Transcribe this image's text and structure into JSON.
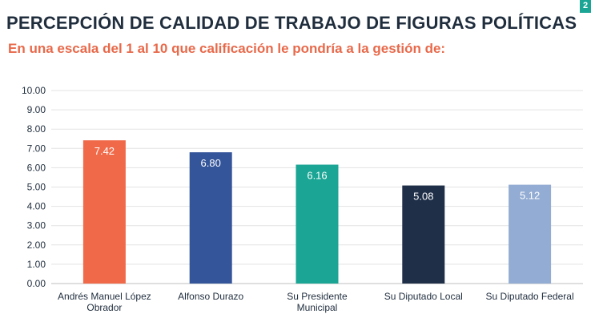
{
  "header": {
    "title": "PERCEPCIÓN DE CALIDAD DE TRABAJO DE FIGURAS POLÍTICAS",
    "subtitle": "En una escala del 1 al 10 que calificación le pondría a la gestión de:",
    "page_badge": "2"
  },
  "chart_data": {
    "type": "bar",
    "title": "PERCEPCIÓN DE CALIDAD DE TRABAJO DE FIGURAS POLÍTICAS",
    "subtitle": "En una escala del 1 al 10 que calificación le pondría a la gestión de:",
    "categories": [
      [
        "Andrés Manuel López",
        "Obrador"
      ],
      [
        "Alfonso Durazo"
      ],
      [
        "Su Presidente",
        "Municipal"
      ],
      [
        "Su Diputado Local"
      ],
      [
        "Su Diputado Federal"
      ]
    ],
    "values": [
      7.42,
      6.8,
      6.16,
      5.08,
      5.12
    ],
    "value_labels": [
      "7.42",
      "6.80",
      "6.16",
      "5.08",
      "5.12"
    ],
    "colors": [
      "#f06a4a",
      "#34559a",
      "#1aa594",
      "#1f2f48",
      "#93acd3"
    ],
    "ylim": [
      0,
      10
    ],
    "yticks": [
      "0.00",
      "1.00",
      "2.00",
      "3.00",
      "4.00",
      "5.00",
      "6.00",
      "7.00",
      "8.00",
      "9.00",
      "10.00"
    ],
    "grid": true,
    "legend": "none"
  }
}
